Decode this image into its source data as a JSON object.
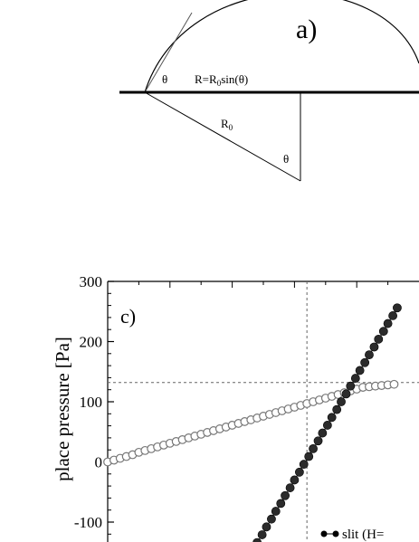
{
  "panel_a": {
    "label": "a)",
    "theta_label_left": "θ",
    "formula_main": "R=R",
    "formula_sub": "0",
    "formula_tail": "sin(θ)",
    "r0_main": "R",
    "r0_sub": "0",
    "theta_label_bottom": "θ"
  },
  "panel_c": {
    "label": "c)",
    "ylabel": "place pressure [Pa]",
    "legend_label": "slit (H="
  },
  "chart_data": {
    "type": "scatter",
    "ylabel": "place pressure [Pa]",
    "ylim": [
      -160,
      300
    ],
    "y_ticks": [
      300,
      200,
      100,
      0,
      -100
    ],
    "y_tick_labels": [
      "300",
      "200",
      "100",
      "0",
      "-100"
    ],
    "xlim": [
      0,
      50
    ],
    "reference_lines": {
      "x": 32,
      "y": 132
    },
    "grid": false,
    "legend_position": "bottom-right",
    "series": [
      {
        "name": "",
        "marker": "open-circle",
        "color": "#777777",
        "x": [
          0,
          1,
          2,
          3,
          4,
          5,
          6,
          7,
          8,
          9,
          10,
          11,
          12,
          13,
          14,
          15,
          16,
          17,
          18,
          19,
          20,
          21,
          22,
          23,
          24,
          25,
          26,
          27,
          28,
          29,
          30,
          31,
          32,
          33,
          34,
          35,
          36,
          37,
          38,
          39,
          40,
          41,
          42,
          43,
          44,
          45,
          46
        ],
        "values": [
          0,
          3,
          6,
          9,
          12,
          16,
          19,
          22,
          25,
          28,
          31,
          34,
          37,
          40,
          43,
          46,
          49,
          52,
          55,
          58,
          61,
          64,
          67,
          70,
          73,
          76,
          79,
          82,
          85,
          88,
          91,
          94,
          97,
          100,
          103,
          106,
          109,
          112,
          115,
          118,
          121,
          124,
          125,
          126,
          127,
          128,
          129
        ]
      },
      {
        "name": "slit (H=",
        "marker": "filled-circle",
        "color": "#2b2b2b",
        "x": [
          22.5,
          23.3,
          24.0,
          24.8,
          25.5,
          26.3,
          27.0,
          27.8,
          28.5,
          29.3,
          30.0,
          30.8,
          31.5,
          32.3,
          33.0,
          33.8,
          34.5,
          35.3,
          36.0,
          36.8,
          37.5,
          38.3,
          39.0,
          39.8,
          40.5,
          41.3,
          42.0,
          42.8,
          43.5,
          44.3,
          45.0,
          45.8,
          46.5
        ],
        "values": [
          -160,
          -147,
          -134,
          -121,
          -108,
          -95,
          -82,
          -69,
          -56,
          -43,
          -30,
          -17,
          -4,
          9,
          22,
          35,
          48,
          61,
          74,
          87,
          100,
          113,
          126,
          139,
          152,
          165,
          178,
          191,
          204,
          217,
          230,
          243,
          256
        ]
      }
    ]
  }
}
